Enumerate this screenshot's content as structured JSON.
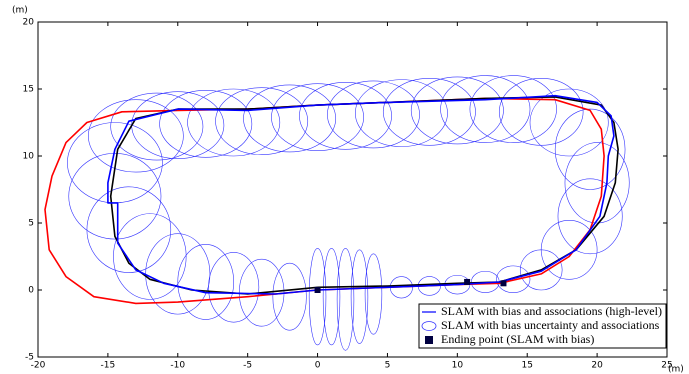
{
  "chart_data": {
    "type": "line",
    "x_label": "(m)",
    "y_label": "(m)",
    "xlim": [
      -20,
      25
    ],
    "ylim": [
      -5,
      20
    ],
    "xticks": [
      -20,
      -15,
      -10,
      -5,
      0,
      5,
      10,
      15,
      20,
      25
    ],
    "yticks": [
      -5,
      0,
      5,
      10,
      15,
      20
    ],
    "legend": "lower right",
    "series": [
      {
        "type": "ellipse",
        "name": "SLAM with bias uncertainty and associations",
        "color": "#3333ff",
        "x": [
          -10,
          -8,
          -6,
          -4,
          -2,
          0,
          2,
          4,
          6,
          8,
          10,
          12,
          14,
          16,
          18,
          19.5,
          20,
          19.5,
          18,
          16,
          14,
          12,
          10,
          8,
          6,
          4,
          3,
          2,
          1,
          0,
          -2,
          -4,
          -6,
          -8,
          -10,
          -12,
          -13.5,
          -14.5,
          -14.5,
          -13,
          -11.5
        ],
        "y": [
          12.3,
          12.4,
          12.5,
          12.6,
          12.8,
          12.9,
          13,
          13.1,
          13.2,
          13.3,
          13.4,
          13.5,
          13.5,
          13.3,
          12.5,
          10.5,
          8,
          5.5,
          3,
          1.5,
          0.8,
          0.6,
          0.4,
          0.3,
          0.2,
          -0.3,
          -0.5,
          -0.7,
          -0.5,
          -0.5,
          -0.5,
          -0.2,
          0.2,
          0.6,
          1.2,
          2.5,
          4.5,
          7,
          9.5,
          11.5,
          12.2
        ],
        "rx": [
          3.3,
          3.3,
          3.3,
          3.3,
          3.3,
          3.3,
          3.3,
          3.3,
          3.3,
          3.3,
          3.3,
          3.2,
          3.1,
          3,
          2.8,
          2.5,
          2.3,
          2.3,
          2,
          1.5,
          1.2,
          1,
          0.9,
          0.8,
          0.8,
          0.6,
          0.6,
          0.6,
          0.6,
          0.6,
          1.2,
          1.6,
          1.8,
          2,
          2.3,
          2.6,
          3,
          3.3,
          3.4,
          3.4,
          3.3
        ],
        "ry": [
          2.5,
          2.5,
          2.5,
          2.5,
          2.5,
          2.5,
          2.5,
          2.5,
          2.5,
          2.5,
          2.5,
          2.5,
          2.5,
          2.5,
          2.5,
          3,
          3,
          2.8,
          2.2,
          1.5,
          1,
          0.8,
          0.7,
          0.7,
          0.8,
          3,
          3.5,
          3.8,
          3.6,
          3.6,
          2.5,
          2.5,
          2.6,
          2.8,
          3,
          3.2,
          3.2,
          3.2,
          3,
          2.7,
          2.5
        ]
      },
      {
        "type": "line",
        "color": "#ff0000",
        "x": [
          0,
          5,
          10,
          13,
          16,
          18,
          19.5,
          20.3,
          20.5,
          20.3,
          19.5,
          17,
          12,
          5,
          0,
          -5,
          -10,
          -14,
          -16.5,
          -18,
          -19,
          -19.5,
          -19.2,
          -18,
          -16,
          -13,
          -10,
          -5,
          0
        ],
        "y": [
          0,
          0.2,
          0.4,
          0.5,
          1.2,
          2.5,
          4.5,
          7,
          10,
          12,
          13.4,
          14.2,
          14.3,
          14,
          13.8,
          13.5,
          13.4,
          13.3,
          12.5,
          11,
          8.5,
          6,
          3,
          1,
          -0.5,
          -1,
          -0.9,
          -0.5,
          0
        ]
      },
      {
        "type": "line",
        "color": "#000000",
        "x": [
          0,
          5,
          10,
          13,
          16,
          18.5,
          20.5,
          21.3,
          21.5,
          21.2,
          20.3,
          17,
          12,
          5,
          0,
          -5,
          -10,
          -13,
          -14.3,
          -14.8,
          -14.5,
          -13.5,
          -12,
          -9,
          -5,
          0
        ],
        "y": [
          0.2,
          0.3,
          0.5,
          0.6,
          1.5,
          3,
          5.5,
          8,
          10.5,
          12.5,
          13.8,
          14.4,
          14.3,
          14,
          13.8,
          13.5,
          13.5,
          12.8,
          10.5,
          7,
          4,
          2,
          0.8,
          0,
          -0.3,
          0.2
        ]
      },
      {
        "type": "line",
        "name": "SLAM with bias and associations (high-level)",
        "color": "#0000ff",
        "x": [
          0,
          5,
          10,
          13,
          16,
          18.5,
          20.2,
          20.7,
          20.8,
          21.2,
          21,
          20,
          17,
          12,
          5,
          0,
          -5,
          -10,
          -13.5,
          -14.5,
          -15,
          -15,
          -14.3,
          -14.3,
          -13,
          -11,
          -8,
          -3,
          0
        ],
        "y": [
          0,
          0.2,
          0.4,
          0.6,
          1.4,
          3,
          5.5,
          8,
          10,
          11.5,
          13,
          14,
          14.5,
          14.2,
          14,
          13.8,
          13.4,
          13.5,
          12.6,
          10.5,
          8,
          6.5,
          6.5,
          3.5,
          1.5,
          0.5,
          -0.2,
          -0.3,
          0
        ]
      },
      {
        "type": "square",
        "name": "Ending point (SLAM with bias)",
        "color": "#000040",
        "x": [
          0,
          10.7,
          13.3
        ],
        "y": [
          0,
          0.6,
          0.5
        ]
      }
    ]
  }
}
